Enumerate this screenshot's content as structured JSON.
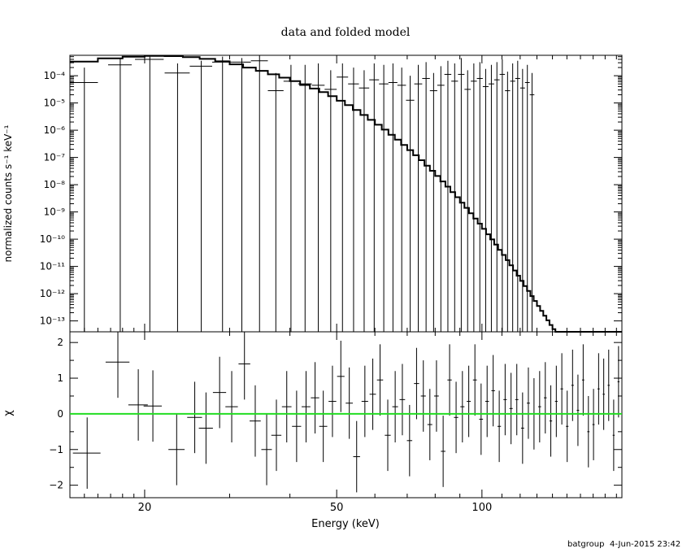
{
  "footer": {
    "user": "batgroup",
    "date": "4-Jun-2015 23:42"
  },
  "colors": {
    "axis": "#000000",
    "model": "#000000",
    "data": "#000000",
    "zero_line": "#22dd22",
    "background": "#ffffff"
  },
  "chart_data": [
    {
      "type": "line",
      "title": "data and folded model",
      "ylabel": "normalized counts s⁻¹ keV⁻¹",
      "xlabel": "",
      "xscale": "log",
      "yscale": "log",
      "xlim": [
        14,
        195
      ],
      "ylim_log10": [
        -13.4,
        -3.25
      ],
      "ytick_exponents": [
        -4,
        -5,
        -6,
        -7,
        -8,
        -9,
        -10,
        -11,
        -12,
        -13
      ],
      "ytick_labels": [
        "10⁻⁴",
        "10⁻⁵",
        "10⁻⁶",
        "10⁻⁷",
        "10⁻⁸",
        "10⁻⁹",
        "10⁻¹⁰",
        "10⁻¹¹",
        "10⁻¹²",
        "10⁻¹³"
      ],
      "series": [
        {
          "kind": "model_step",
          "edges": [
            14,
            16,
            18,
            20,
            22,
            24,
            26,
            28,
            30,
            32,
            34,
            36,
            38,
            40,
            42,
            44,
            46,
            48,
            50,
            52,
            54,
            56,
            58,
            60,
            62,
            64,
            66,
            68,
            70,
            72,
            74,
            76,
            78,
            80,
            82,
            84,
            86,
            88,
            90,
            92,
            94,
            96,
            98,
            100,
            102,
            104,
            106,
            108,
            110,
            112,
            114,
            116,
            118,
            120,
            122,
            124,
            126,
            128,
            130,
            132,
            134,
            136,
            138,
            140,
            142,
            144,
            146,
            148,
            150,
            152,
            154,
            156,
            158,
            160,
            162,
            164,
            166,
            168,
            170,
            172,
            174,
            176,
            178,
            180,
            182,
            184,
            186,
            188,
            190,
            192,
            195
          ],
          "log10_values": [
            -3.48,
            -3.36,
            -3.3,
            -3.27,
            -3.28,
            -3.32,
            -3.38,
            -3.47,
            -3.58,
            -3.7,
            -3.82,
            -3.95,
            -4.07,
            -4.2,
            -4.34,
            -4.47,
            -4.6,
            -4.75,
            -4.92,
            -5.08,
            -5.26,
            -5.44,
            -5.62,
            -5.8,
            -5.98,
            -6.17,
            -6.35,
            -6.54,
            -6.73,
            -6.92,
            -7.1,
            -7.3,
            -7.49,
            -7.68,
            -7.88,
            -8.07,
            -8.27,
            -8.46,
            -8.66,
            -8.85,
            -9.05,
            -9.24,
            -9.43,
            -9.62,
            -9.82,
            -10.01,
            -10.2,
            -10.39,
            -10.58,
            -10.77,
            -10.96,
            -11.15,
            -11.34,
            -11.53,
            -11.72,
            -11.9,
            -12.09,
            -12.27,
            -12.45,
            -12.63,
            -12.81,
            -12.98,
            -13.15,
            -13.3,
            -13.4,
            -13.4,
            -13.4,
            -13.4,
            -13.4,
            -13.4,
            -13.4,
            -13.4,
            -13.4,
            -13.4,
            -13.4,
            -13.4,
            -13.4,
            -13.4,
            -13.4,
            -13.4,
            -13.4,
            -13.4,
            -13.4,
            -13.4,
            -13.4,
            -13.4,
            -13.4,
            -13.4,
            -13.4,
            -13.4
          ]
        },
        {
          "kind": "data_points",
          "x": [
            15.0,
            17.8,
            20.5,
            23.4,
            26.2,
            29.0,
            31.8,
            34.6,
            37.4,
            40.2,
            43.0,
            45.8,
            48.6,
            51.4,
            54.2,
            57.0,
            59.8,
            62.6,
            65.4,
            68.2,
            71.0,
            73.8,
            76.6,
            79.4,
            82.2,
            85.0,
            87.8,
            90.6,
            93.4,
            96.2,
            99.0,
            101.8,
            104.6,
            107.4,
            110.2,
            113.0,
            115.8,
            118.6,
            121.4,
            124.2,
            127.0
          ],
          "x_halfwidth": [
            1.0,
            1.0,
            1.4,
            1.4,
            1.4,
            1.4,
            1.4,
            1.4,
            1.4,
            1.4,
            1.4,
            1.4,
            1.4,
            1.4,
            1.4,
            1.4,
            1.4,
            1.4,
            1.4,
            1.4,
            1.4,
            1.4,
            1.4,
            1.4,
            1.4,
            1.4,
            1.4,
            1.4,
            1.4,
            1.4,
            1.4,
            1.4,
            1.4,
            1.4,
            1.4,
            1.4,
            1.4,
            1.4,
            1.4,
            1.4,
            1.4
          ],
          "log10_y": [
            -4.25,
            -3.6,
            -3.4,
            -3.9,
            -3.65,
            -3.5,
            -3.5,
            -3.45,
            -4.55,
            -4.2,
            -4.3,
            -4.35,
            -4.5,
            -4.05,
            -4.3,
            -4.45,
            -4.15,
            -4.3,
            -4.25,
            -4.35,
            -4.9,
            -4.3,
            -4.1,
            -4.55,
            -4.35,
            -3.95,
            -4.2,
            -3.95,
            -4.5,
            -4.2,
            -4.1,
            -4.4,
            -4.3,
            -4.15,
            -3.95,
            -4.55,
            -4.2,
            -4.1,
            -4.45,
            -4.25,
            -4.7
          ],
          "log10_up": [
            -3.7,
            -3.35,
            -3.3,
            -3.55,
            -3.45,
            -3.3,
            -3.35,
            -3.25,
            -3.9,
            -3.6,
            -3.6,
            -3.55,
            -3.8,
            -3.55,
            -3.7,
            -3.8,
            -3.55,
            -3.6,
            -3.55,
            -3.7,
            -4.0,
            -3.6,
            -3.5,
            -3.9,
            -3.65,
            -3.45,
            -3.55,
            -3.35,
            -3.8,
            -3.55,
            -3.5,
            -3.75,
            -3.6,
            -3.5,
            -3.4,
            -3.85,
            -3.55,
            -3.45,
            -3.75,
            -3.6,
            -3.9
          ],
          "log10_down": [
            -13.4,
            -13.4,
            -13.4,
            -13.4,
            -13.4,
            -13.4,
            -13.4,
            -13.4,
            -13.4,
            -13.4,
            -13.4,
            -13.4,
            -13.4,
            -13.4,
            -13.4,
            -13.4,
            -13.4,
            -13.4,
            -13.4,
            -13.4,
            -13.4,
            -13.4,
            -13.4,
            -13.4,
            -13.4,
            -13.4,
            -13.4,
            -13.4,
            -13.4,
            -13.4,
            -13.4,
            -13.4,
            -13.4,
            -13.4,
            -13.4,
            -13.4,
            -13.4,
            -13.4,
            -13.4,
            -13.4,
            -13.4
          ]
        }
      ]
    },
    {
      "type": "scatter",
      "title": "",
      "xlabel": "Energy (keV)",
      "ylabel": "χ",
      "xscale": "log",
      "xlim": [
        14,
        195
      ],
      "ylim": [
        -2.35,
        2.3
      ],
      "xticks": [
        20,
        50,
        100
      ],
      "xtick_labels": [
        "20",
        "50",
        "100"
      ],
      "yticks": [
        2,
        1,
        0,
        -1,
        -2
      ],
      "ytick_labels": [
        "2",
        "1",
        "0",
        "−1",
        "−2"
      ],
      "series": [
        {
          "kind": "residuals",
          "x": [
            15.2,
            17.6,
            19.4,
            20.8,
            23.3,
            25.4,
            26.8,
            28.6,
            30.3,
            32.2,
            33.9,
            35.8,
            37.5,
            39.4,
            41.3,
            43.2,
            45.1,
            46.9,
            49.0,
            51.0,
            53.1,
            55.0,
            57.2,
            59.4,
            61.5,
            63.8,
            66.1,
            68.4,
            70.8,
            73.2,
            75.6,
            78.0,
            80.5,
            83.1,
            85.7,
            88.4,
            91.1,
            93.9,
            96.7,
            99.6,
            102.5,
            105.5,
            108.6,
            111.7,
            114.9,
            118.1,
            121.4,
            124.8,
            128.2,
            131.7,
            135.3,
            138.9,
            142.6,
            146.4,
            150.2,
            154.1,
            158.1,
            162.1,
            166.2,
            170.3,
            174.5,
            178.8,
            183.1,
            187.5,
            191.9
          ],
          "xerr": [
            1.0,
            1.0,
            0.9,
            0.9,
            0.9,
            0.9,
            0.9,
            0.9,
            0.9,
            0.9,
            0.9,
            0.9,
            0.9,
            0.9,
            0.9,
            0.9,
            0.9,
            0.9,
            0.9,
            0.9,
            0.9,
            0.9,
            0.9,
            0.9,
            0.9,
            0.9,
            0.9,
            0.9,
            0.9,
            0.9,
            0.9,
            0.9,
            0.9,
            0.9,
            0.9,
            0.9,
            0.9,
            0.9,
            0.9,
            0.9,
            0.9,
            0.9,
            0.9,
            0.9,
            0.9,
            0.9,
            0.9,
            0.9,
            0.9,
            0.9,
            0.9,
            0.9,
            0.9,
            0.9,
            0.9,
            0.9,
            0.9,
            0.9,
            0.9,
            0.9,
            0.9,
            0.9,
            0.9,
            0.9,
            0.9
          ],
          "y": [
            -1.1,
            1.45,
            0.25,
            0.22,
            -1.0,
            -0.1,
            -0.4,
            0.6,
            0.2,
            1.4,
            -0.2,
            -1.0,
            -0.6,
            0.2,
            -0.35,
            0.2,
            0.45,
            -0.35,
            0.35,
            1.05,
            0.3,
            -1.2,
            0.35,
            0.55,
            0.95,
            -0.6,
            0.2,
            0.4,
            -0.75,
            0.85,
            0.5,
            -0.3,
            0.5,
            -1.05,
            0.95,
            -0.1,
            0.2,
            0.35,
            0.95,
            -0.15,
            0.35,
            0.65,
            -0.35,
            0.4,
            0.15,
            0.4,
            -0.4,
            0.3,
            0.0,
            0.2,
            0.45,
            -0.2,
            0.35,
            0.7,
            -0.35,
            0.8,
            0.1,
            0.95,
            -0.5,
            -0.3,
            0.7,
            0.55,
            0.8,
            -0.6,
            0.9
          ],
          "yerr": [
            1.0,
            1.0,
            1.0,
            1.0,
            1.0,
            1.0,
            1.0,
            1.0,
            1.0,
            1.0,
            1.0,
            1.0,
            1.0,
            1.0,
            1.0,
            1.0,
            1.0,
            1.0,
            1.0,
            1.0,
            1.0,
            1.0,
            1.0,
            1.0,
            1.0,
            1.0,
            1.0,
            1.0,
            1.0,
            1.0,
            1.0,
            1.0,
            1.0,
            1.0,
            1.0,
            1.0,
            1.0,
            1.0,
            1.0,
            1.0,
            1.0,
            1.0,
            1.0,
            1.0,
            1.0,
            1.0,
            1.0,
            1.0,
            1.0,
            1.0,
            1.0,
            1.0,
            1.0,
            1.0,
            1.0,
            1.0,
            1.0,
            1.0,
            1.0,
            1.0,
            1.0,
            1.0,
            1.0,
            1.0,
            1.0
          ]
        },
        {
          "kind": "zero_line",
          "y": 0
        }
      ]
    }
  ]
}
